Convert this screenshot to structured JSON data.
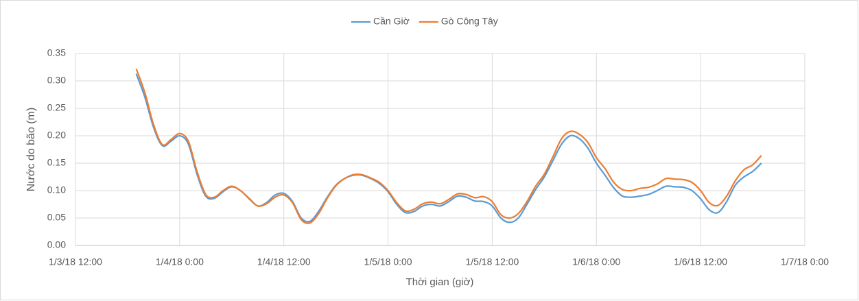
{
  "chart_data": {
    "type": "line",
    "y_label": "Nước do bão (m)",
    "x_label": "Thời gian (giờ)",
    "x": [
      "2018-01-03T19:00",
      "2018-01-03T20:00",
      "2018-01-03T21:00",
      "2018-01-03T22:00",
      "2018-01-03T23:00",
      "2018-01-04T00:00",
      "2018-01-04T01:00",
      "2018-01-04T02:00",
      "2018-01-04T03:00",
      "2018-01-04T04:00",
      "2018-01-04T05:00",
      "2018-01-04T06:00",
      "2018-01-04T07:00",
      "2018-01-04T08:00",
      "2018-01-04T09:00",
      "2018-01-04T10:00",
      "2018-01-04T11:00",
      "2018-01-04T12:00",
      "2018-01-04T13:00",
      "2018-01-04T14:00",
      "2018-01-04T15:00",
      "2018-01-04T16:00",
      "2018-01-04T17:00",
      "2018-01-04T18:00",
      "2018-01-04T19:00",
      "2018-01-04T20:00",
      "2018-01-04T21:00",
      "2018-01-04T22:00",
      "2018-01-04T23:00",
      "2018-01-05T00:00",
      "2018-01-05T01:00",
      "2018-01-05T02:00",
      "2018-01-05T03:00",
      "2018-01-05T04:00",
      "2018-01-05T05:00",
      "2018-01-05T06:00",
      "2018-01-05T07:00",
      "2018-01-05T08:00",
      "2018-01-05T09:00",
      "2018-01-05T10:00",
      "2018-01-05T11:00",
      "2018-01-05T12:00",
      "2018-01-05T13:00",
      "2018-01-05T14:00",
      "2018-01-05T15:00",
      "2018-01-05T16:00",
      "2018-01-05T17:00",
      "2018-01-05T18:00",
      "2018-01-05T19:00",
      "2018-01-05T20:00",
      "2018-01-05T21:00",
      "2018-01-05T22:00",
      "2018-01-05T23:00",
      "2018-01-06T00:00",
      "2018-01-06T01:00",
      "2018-01-06T02:00",
      "2018-01-06T03:00",
      "2018-01-06T04:00",
      "2018-01-06T05:00",
      "2018-01-06T06:00",
      "2018-01-06T07:00",
      "2018-01-06T08:00",
      "2018-01-06T09:00",
      "2018-01-06T10:00",
      "2018-01-06T11:00",
      "2018-01-06T12:00",
      "2018-01-06T13:00",
      "2018-01-06T14:00",
      "2018-01-06T15:00",
      "2018-01-06T16:00",
      "2018-01-06T17:00",
      "2018-01-06T18:00",
      "2018-01-06T19:00"
    ],
    "series": [
      {
        "name": "Cần Giờ",
        "color": "#5b9bd5",
        "values": [
          0.313,
          0.27,
          0.215,
          0.182,
          0.19,
          0.2,
          0.185,
          0.13,
          0.09,
          0.086,
          0.098,
          0.107,
          0.1,
          0.085,
          0.072,
          0.078,
          0.092,
          0.095,
          0.08,
          0.05,
          0.044,
          0.062,
          0.088,
          0.11,
          0.122,
          0.128,
          0.128,
          0.122,
          0.113,
          0.098,
          0.075,
          0.06,
          0.062,
          0.072,
          0.075,
          0.072,
          0.08,
          0.09,
          0.088,
          0.081,
          0.08,
          0.072,
          0.05,
          0.042,
          0.05,
          0.075,
          0.102,
          0.125,
          0.155,
          0.185,
          0.2,
          0.195,
          0.178,
          0.15,
          0.128,
          0.105,
          0.09,
          0.088,
          0.09,
          0.093,
          0.1,
          0.108,
          0.107,
          0.106,
          0.1,
          0.085,
          0.065,
          0.06,
          0.08,
          0.11,
          0.125,
          0.135,
          0.15
        ]
      },
      {
        "name": "Gò Công Tây",
        "color": "#ed7d31",
        "values": [
          0.322,
          0.278,
          0.22,
          0.184,
          0.193,
          0.204,
          0.19,
          0.135,
          0.093,
          0.088,
          0.1,
          0.108,
          0.1,
          0.086,
          0.072,
          0.076,
          0.088,
          0.092,
          0.078,
          0.047,
          0.041,
          0.058,
          0.086,
          0.109,
          0.122,
          0.129,
          0.129,
          0.123,
          0.115,
          0.1,
          0.078,
          0.063,
          0.066,
          0.076,
          0.079,
          0.076,
          0.084,
          0.094,
          0.093,
          0.087,
          0.089,
          0.08,
          0.056,
          0.05,
          0.058,
          0.08,
          0.108,
          0.13,
          0.162,
          0.195,
          0.208,
          0.203,
          0.188,
          0.16,
          0.14,
          0.115,
          0.102,
          0.1,
          0.104,
          0.106,
          0.112,
          0.122,
          0.121,
          0.12,
          0.115,
          0.1,
          0.078,
          0.073,
          0.09,
          0.118,
          0.138,
          0.147,
          0.164
        ]
      }
    ],
    "xlim": [
      "2018-01-03T12:00",
      "2018-01-07T00:00"
    ],
    "xticks": [
      {
        "value": "2018-01-03T12:00",
        "label": "1/3/18 12:00"
      },
      {
        "value": "2018-01-04T00:00",
        "label": "1/4/18 0:00"
      },
      {
        "value": "2018-01-04T12:00",
        "label": "1/4/18 12:00"
      },
      {
        "value": "2018-01-05T00:00",
        "label": "1/5/18 0:00"
      },
      {
        "value": "2018-01-05T12:00",
        "label": "1/5/18 12:00"
      },
      {
        "value": "2018-01-06T00:00",
        "label": "1/6/18 0:00"
      },
      {
        "value": "2018-01-06T12:00",
        "label": "1/6/18 12:00"
      },
      {
        "value": "2018-01-07T00:00",
        "label": "1/7/18 0:00"
      }
    ],
    "ylim": [
      0,
      0.35
    ],
    "yticks": [
      {
        "value": 0,
        "label": "0.00"
      },
      {
        "value": 0.05,
        "label": "0.05"
      },
      {
        "value": 0.1,
        "label": "0.10"
      },
      {
        "value": 0.15,
        "label": "0.15"
      },
      {
        "value": 0.2,
        "label": "0.20"
      },
      {
        "value": 0.25,
        "label": "0.25"
      },
      {
        "value": 0.3,
        "label": "0.30"
      },
      {
        "value": 0.35,
        "label": "0.35"
      }
    ],
    "grid": true,
    "legend": "top"
  }
}
